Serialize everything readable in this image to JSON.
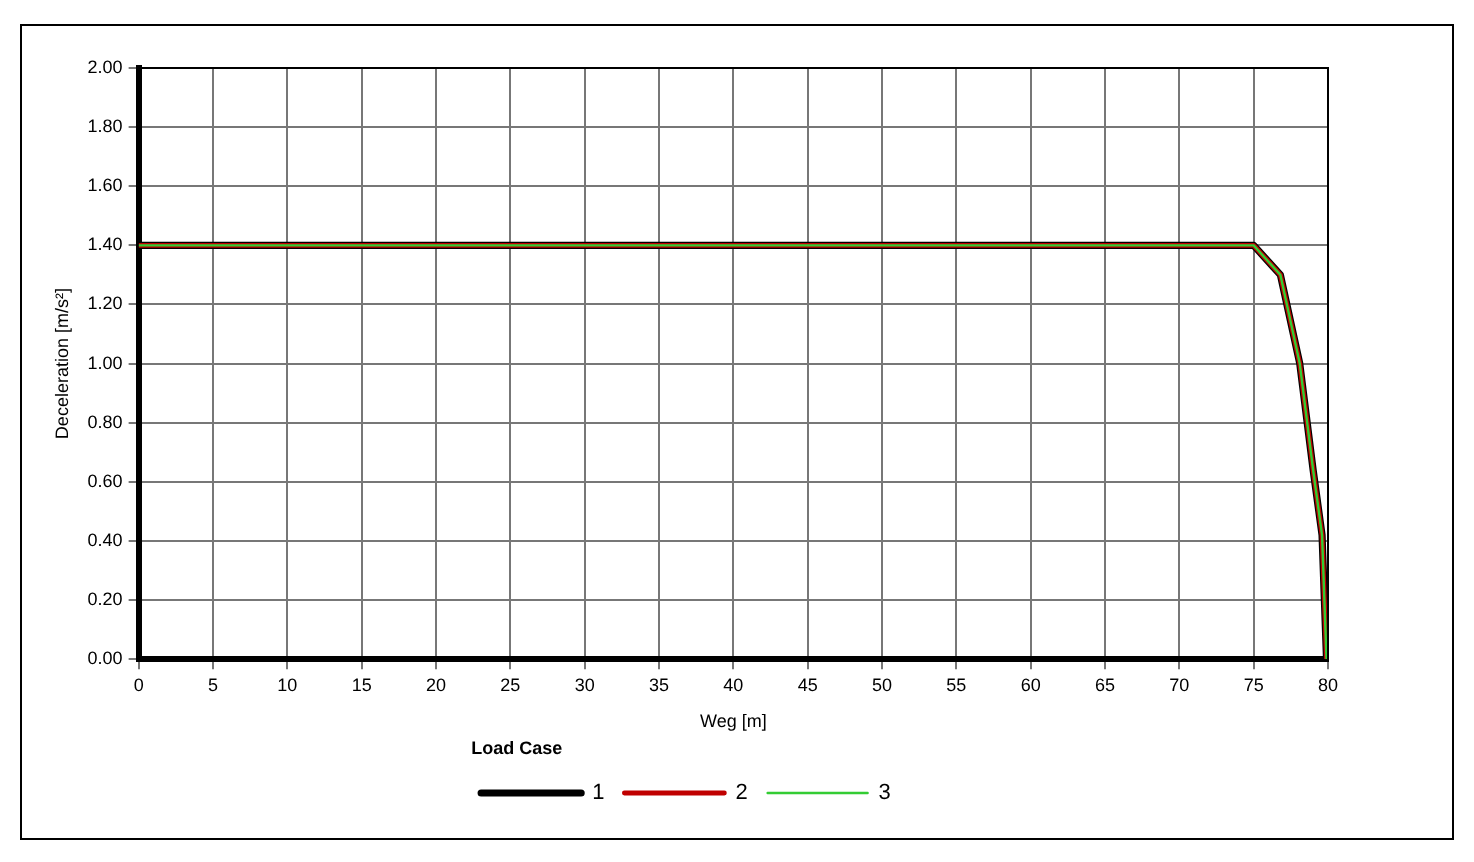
{
  "chart_data": {
    "type": "line",
    "xlabel": "Weg [m]",
    "ylabel": "Deceleration [m/s²]",
    "legend_title": "Load Case",
    "legend": "bottom",
    "grid": true,
    "marker": "none",
    "x": [
      0,
      75,
      76.8,
      78.1,
      79.0,
      79.6,
      79.75,
      79.9
    ],
    "series": [
      {
        "name": "1",
        "color": "#000000",
        "values": [
          1.4,
          1.4,
          1.3,
          1.0,
          0.64,
          0.42,
          0.21,
          0
        ]
      },
      {
        "name": "2",
        "color": "#c00000",
        "values": [
          1.4,
          1.4,
          1.3,
          1.0,
          0.64,
          0.42,
          0.21,
          0
        ]
      },
      {
        "name": "3",
        "color": "#33cc33",
        "values": [
          1.4,
          1.4,
          1.3,
          1.0,
          0.64,
          0.42,
          0.21,
          0
        ]
      }
    ],
    "xlim": [
      0,
      80
    ],
    "xticks": [
      0,
      5,
      10,
      15,
      20,
      25,
      30,
      35,
      40,
      45,
      50,
      55,
      60,
      65,
      70,
      75,
      80
    ],
    "ylim": [
      0,
      2
    ],
    "yticks": [
      {
        "value": 0,
        "label": "0.00"
      },
      {
        "value": 0.2,
        "label": "0.20"
      },
      {
        "value": 0.4,
        "label": "0.40"
      },
      {
        "value": 0.6,
        "label": "0.60"
      },
      {
        "value": 0.8,
        "label": "0.80"
      },
      {
        "value": 1,
        "label": "1.00"
      },
      {
        "value": 1.2,
        "label": "1.20"
      },
      {
        "value": 1.4,
        "label": "1.40"
      },
      {
        "value": 1.6,
        "label": "1.60"
      },
      {
        "value": 1.8,
        "label": "1.80"
      },
      {
        "value": 2,
        "label": "2.00"
      }
    ]
  }
}
